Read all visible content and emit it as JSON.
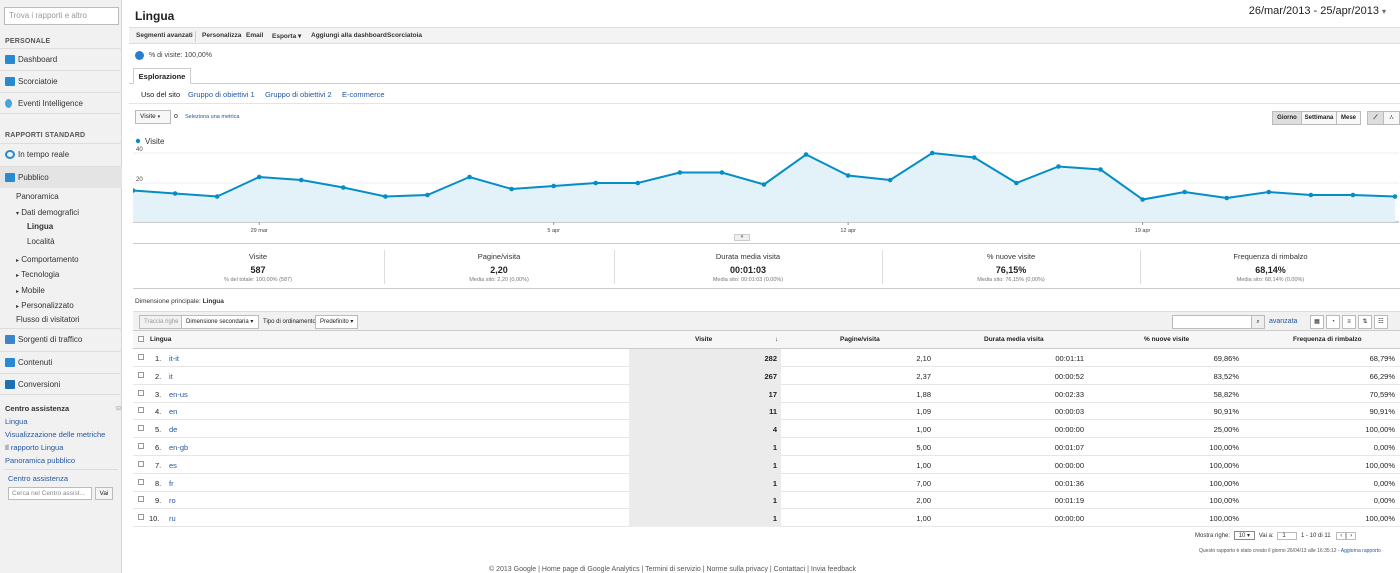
{
  "sidebar": {
    "search_placeholder": "Trova i rapporti e altro",
    "personal_heading": "PERSONALE",
    "personal_items": [
      "Dashboard",
      "Scorciatoie",
      "Eventi Intelligence"
    ],
    "standard_heading": "RAPPORTI STANDARD",
    "realtime": "In tempo reale",
    "audience": "Pubblico",
    "audience_items": {
      "overview": "Panoramica",
      "demographics": "Dati demografici",
      "language": "Lingua",
      "location": "Località",
      "behavior": "Comportamento",
      "technology": "Tecnologia",
      "mobile": "Mobile",
      "custom": "Personalizzato",
      "flow": "Flusso di visitatori"
    },
    "traffic": "Sorgenti di traffico",
    "content": "Contenuti",
    "conversions": "Conversioni",
    "help_heading": "Centro assistenza",
    "help_links": [
      "Lingua",
      "Visualizzazione delle metriche",
      "Il rapporto Lingua",
      "Panoramica pubblico"
    ],
    "help_center": "Centro assistenza",
    "help_search_placeholder": "Cerca nel Centro assist...",
    "help_go": "Vai"
  },
  "header": {
    "title": "Lingua",
    "date_range": "26/mar/2013 - 25/apr/2013"
  },
  "toolbar": {
    "advanced_segments": "Segmenti avanzati",
    "customize": "Personalizza",
    "email": "Email",
    "export": "Esporta",
    "add_dashboard": "Aggiungi alla dashboard",
    "shortcut": "Scorciatoia"
  },
  "segment_label": "% di visite: 100,00%",
  "tabs": {
    "explorer": "Esplorazione",
    "subtabs": [
      "Uso del sito",
      "Gruppo di obiettivi 1",
      "Gruppo di obiettivi 2",
      "E-commerce"
    ]
  },
  "chart_controls": {
    "metric": "Visite",
    "vs": "o",
    "select_metric": "Seleziona una metrica",
    "day": "Giorno",
    "week": "Settimana",
    "month": "Mese"
  },
  "chart_data": {
    "type": "area",
    "series": [
      {
        "name": "Visite",
        "values": [
          15,
          13,
          11,
          24,
          22,
          17,
          11,
          12,
          24,
          16,
          18,
          20,
          20,
          27,
          27,
          19,
          39,
          25,
          22,
          40,
          37,
          20,
          31,
          29,
          9,
          14,
          10,
          14,
          12,
          12,
          11
        ]
      }
    ],
    "x_tick_labels": [
      "29 mar",
      "5 apr",
      "12 apr",
      "19 apr"
    ],
    "y_tick_labels": [
      "40",
      "20"
    ],
    "ylim": [
      0,
      44
    ],
    "color": "#058dc7"
  },
  "summary": [
    {
      "label": "Visite",
      "value": "587",
      "sub": "% del totale: 100,00% (587)"
    },
    {
      "label": "Pagine/visita",
      "value": "2,20",
      "sub": "Media sito: 2,20 (0,00%)"
    },
    {
      "label": "Durata media visita",
      "value": "00:01:03",
      "sub": "Media sito: 00:01:03 (0,00%)"
    },
    {
      "label": "% nuove visite",
      "value": "76,15%",
      "sub": "Media sito: 76,15% (0,00%)"
    },
    {
      "label": "Frequenza di rimbalzo",
      "value": "68,14%",
      "sub": "Media sito: 68,14% (0,00%)"
    }
  ],
  "dimension": {
    "label": "Dimensione principale:",
    "value": "Lingua"
  },
  "controls": {
    "plot_rows": "Traccia righe",
    "secondary_dim": "Dimensione secondaria",
    "sort_type_label": "Tipo di ordinamento:",
    "sort_type": "Predefinito",
    "advanced": "avanzata"
  },
  "table": {
    "headers": [
      "Lingua",
      "Visite",
      "Pagine/visita",
      "Durata media visita",
      "% nuove visite",
      "Frequenza di rimbalzo"
    ],
    "rows": [
      [
        "1.",
        "it-it",
        "282",
        "2,10",
        "00:01:11",
        "69,86%",
        "68,79%"
      ],
      [
        "2.",
        "it",
        "267",
        "2,37",
        "00:00:52",
        "83,52%",
        "66,29%"
      ],
      [
        "3.",
        "en-us",
        "17",
        "1,88",
        "00:02:33",
        "58,82%",
        "70,59%"
      ],
      [
        "4.",
        "en",
        "11",
        "1,09",
        "00:00:03",
        "90,91%",
        "90,91%"
      ],
      [
        "5.",
        "de",
        "4",
        "1,00",
        "00:00:00",
        "25,00%",
        "100,00%"
      ],
      [
        "6.",
        "en-gb",
        "1",
        "5,00",
        "00:01:07",
        "100,00%",
        "0,00%"
      ],
      [
        "7.",
        "es",
        "1",
        "1,00",
        "00:00:00",
        "100,00%",
        "100,00%"
      ],
      [
        "8.",
        "fr",
        "1",
        "7,00",
        "00:01:36",
        "100,00%",
        "0,00%"
      ],
      [
        "9.",
        "ro",
        "1",
        "2,00",
        "00:01:19",
        "100,00%",
        "0,00%"
      ],
      [
        "10.",
        "ru",
        "1",
        "1,00",
        "00:00:00",
        "100,00%",
        "100,00%"
      ]
    ]
  },
  "pager": {
    "show_rows": "Mostra righe:",
    "rows_value": "10",
    "goto": "Vai a:",
    "page": "1",
    "range": "1 - 10 di 11",
    "report_note": "Questo rapporto è stato creato il giorno 26/04/13 alle 16:35:12 -",
    "refresh": "Aggiorna rapporto"
  },
  "footer": "© 2013 Google | Home page di Google Analytics | Termini di servizio | Norme sulla privacy | Contattaci | Invia feedback"
}
